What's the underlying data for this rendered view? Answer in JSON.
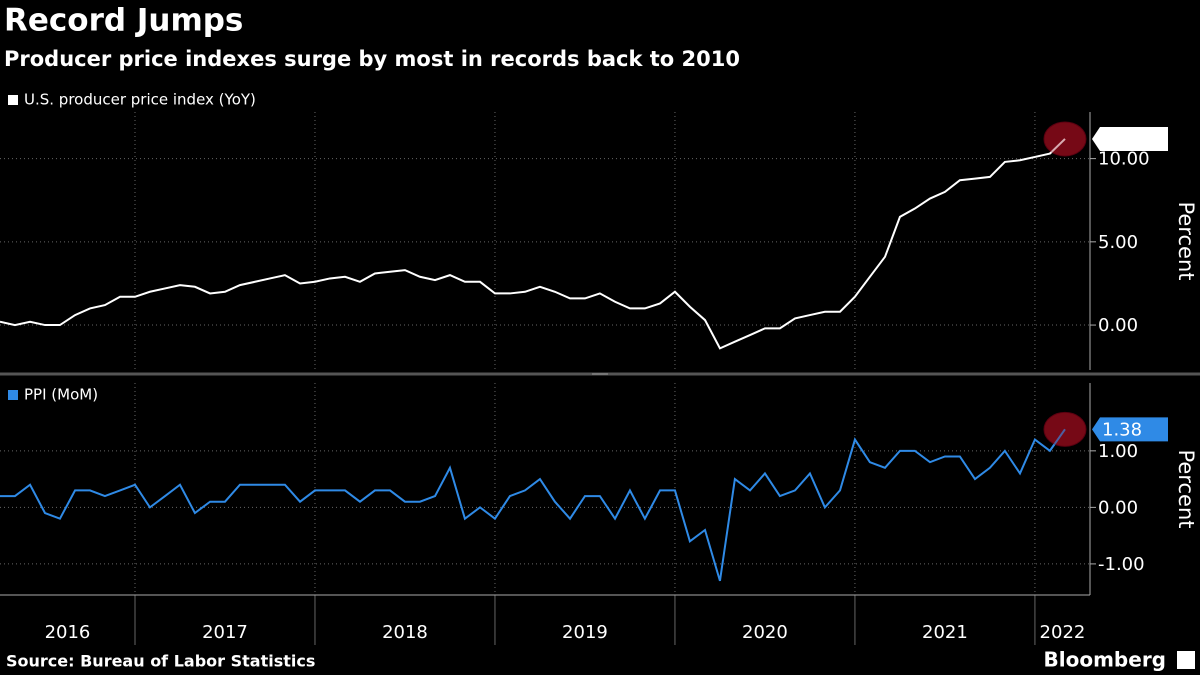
{
  "title": "Record Jumps",
  "subtitle": "Producer price indexes surge by most in records back to 2010",
  "source": "Source: Bureau of Labor Statistics",
  "logo": "Bloomberg",
  "chart_data": [
    {
      "type": "line",
      "ylabel": "Percent",
      "grid": true,
      "x": [
        2016.25,
        2016.333,
        2016.417,
        2016.5,
        2016.583,
        2016.667,
        2016.75,
        2016.833,
        2016.917,
        2017,
        2017.083,
        2017.167,
        2017.25,
        2017.333,
        2017.417,
        2017.5,
        2017.583,
        2017.667,
        2017.75,
        2017.833,
        2017.917,
        2018,
        2018.083,
        2018.167,
        2018.25,
        2018.333,
        2018.417,
        2018.5,
        2018.583,
        2018.667,
        2018.75,
        2018.833,
        2018.917,
        2019,
        2019.083,
        2019.167,
        2019.25,
        2019.333,
        2019.417,
        2019.5,
        2019.583,
        2019.667,
        2019.75,
        2019.833,
        2019.917,
        2020,
        2020.083,
        2020.167,
        2020.25,
        2020.333,
        2020.417,
        2020.5,
        2020.583,
        2020.667,
        2020.75,
        2020.833,
        2020.917,
        2021,
        2021.083,
        2021.167,
        2021.25,
        2021.333,
        2021.417,
        2021.5,
        2021.583,
        2021.667,
        2021.75,
        2021.833,
        2021.917,
        2022,
        2022.083,
        2022.167
      ],
      "series": [
        {
          "name": "U.S. producer price index (YoY)",
          "color": "#ffffff",
          "values": [
            0.2,
            0.0,
            0.2,
            0.0,
            0.0,
            0.6,
            1.0,
            1.2,
            1.7,
            1.7,
            2.0,
            2.2,
            2.4,
            2.3,
            1.9,
            2.0,
            2.4,
            2.6,
            2.8,
            3.0,
            2.5,
            2.6,
            2.8,
            2.9,
            2.6,
            3.1,
            3.2,
            3.3,
            2.9,
            2.7,
            3.0,
            2.6,
            2.6,
            1.9,
            1.9,
            2.0,
            2.3,
            2.0,
            1.6,
            1.6,
            1.9,
            1.4,
            1.0,
            1.0,
            1.3,
            2.0,
            1.1,
            0.3,
            -1.4,
            -1.0,
            -0.6,
            -0.2,
            -0.2,
            0.4,
            0.6,
            0.8,
            0.8,
            1.7,
            2.9,
            4.1,
            6.5,
            7.0,
            7.6,
            8.0,
            8.7,
            8.8,
            8.9,
            9.8,
            9.9,
            10.1,
            10.3,
            11.18
          ]
        }
      ],
      "xlim": [
        2016.25,
        2022.306
      ],
      "xticks": [
        2017,
        2018,
        2019,
        2020,
        2021,
        2022
      ],
      "ylim": [
        -2.7,
        12.8
      ],
      "yticks": [
        {
          "value": 0,
          "label": "0.00"
        },
        {
          "value": 5,
          "label": "5.00"
        },
        {
          "value": 10,
          "label": "10.00"
        }
      ]
    },
    {
      "type": "line",
      "ylabel": "Percent",
      "grid": true,
      "x": [
        2016.25,
        2016.333,
        2016.417,
        2016.5,
        2016.583,
        2016.667,
        2016.75,
        2016.833,
        2016.917,
        2017,
        2017.083,
        2017.167,
        2017.25,
        2017.333,
        2017.417,
        2017.5,
        2017.583,
        2017.667,
        2017.75,
        2017.833,
        2017.917,
        2018,
        2018.083,
        2018.167,
        2018.25,
        2018.333,
        2018.417,
        2018.5,
        2018.583,
        2018.667,
        2018.75,
        2018.833,
        2018.917,
        2019,
        2019.083,
        2019.167,
        2019.25,
        2019.333,
        2019.417,
        2019.5,
        2019.583,
        2019.667,
        2019.75,
        2019.833,
        2019.917,
        2020,
        2020.083,
        2020.167,
        2020.25,
        2020.333,
        2020.417,
        2020.5,
        2020.583,
        2020.667,
        2020.75,
        2020.833,
        2020.917,
        2021,
        2021.083,
        2021.167,
        2021.25,
        2021.333,
        2021.417,
        2021.5,
        2021.583,
        2021.667,
        2021.75,
        2021.833,
        2021.917,
        2022,
        2022.083,
        2022.167
      ],
      "series": [
        {
          "name": "PPI (MoM)",
          "color": "#2f8ae6",
          "values": [
            0.2,
            0.2,
            0.4,
            -0.1,
            -0.2,
            0.3,
            0.3,
            0.2,
            0.3,
            0.4,
            0.0,
            0.2,
            0.4,
            -0.1,
            0.1,
            0.1,
            0.4,
            0.4,
            0.4,
            0.4,
            0.1,
            0.3,
            0.3,
            0.3,
            0.1,
            0.3,
            0.3,
            0.1,
            0.1,
            0.2,
            0.7,
            -0.2,
            0.0,
            -0.2,
            0.2,
            0.3,
            0.5,
            0.1,
            -0.2,
            0.2,
            0.2,
            -0.2,
            0.3,
            -0.2,
            0.3,
            0.3,
            -0.6,
            -0.4,
            -1.3,
            0.5,
            0.3,
            0.6,
            0.2,
            0.3,
            0.6,
            0.0,
            0.3,
            1.2,
            0.8,
            0.7,
            1.0,
            1.0,
            0.8,
            0.9,
            0.9,
            0.5,
            0.7,
            1.0,
            0.6,
            1.2,
            1.0,
            1.38
          ]
        }
      ],
      "xlim": [
        2016.25,
        2022.306
      ],
      "xticks": [
        2017,
        2018,
        2019,
        2020,
        2021,
        2022
      ],
      "xtick_labels": [
        2016,
        2017,
        2018,
        2019,
        2020,
        2021,
        2022
      ],
      "ylim": [
        -1.55,
        2.2
      ],
      "yticks": [
        {
          "value": -1,
          "label": "-1.00"
        },
        {
          "value": 0,
          "label": "0.00"
        },
        {
          "value": 1,
          "label": "1.00"
        }
      ]
    }
  ]
}
